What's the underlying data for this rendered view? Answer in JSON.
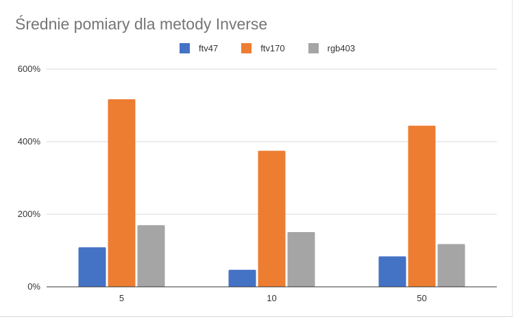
{
  "chart_data": {
    "type": "bar",
    "title": "Średnie pomiary dla metody Inverse",
    "xlabel": "",
    "ylabel": "",
    "categories": [
      "5",
      "10",
      "50"
    ],
    "series": [
      {
        "name": "ftv47",
        "color": "#4472c4",
        "values": [
          109,
          47,
          84
        ]
      },
      {
        "name": "ftv170",
        "color": "#ed7d31",
        "values": [
          517,
          375,
          444
        ]
      },
      {
        "name": "rgb403",
        "color": "#a5a5a5",
        "values": [
          170,
          151,
          118
        ]
      }
    ],
    "ylim": [
      0,
      600
    ],
    "yticks": [
      0,
      200,
      400,
      600
    ],
    "ytick_labels": [
      "0%",
      "200%",
      "400%",
      "600%"
    ],
    "value_unit": "%",
    "grid": true,
    "legend_position": "top"
  }
}
